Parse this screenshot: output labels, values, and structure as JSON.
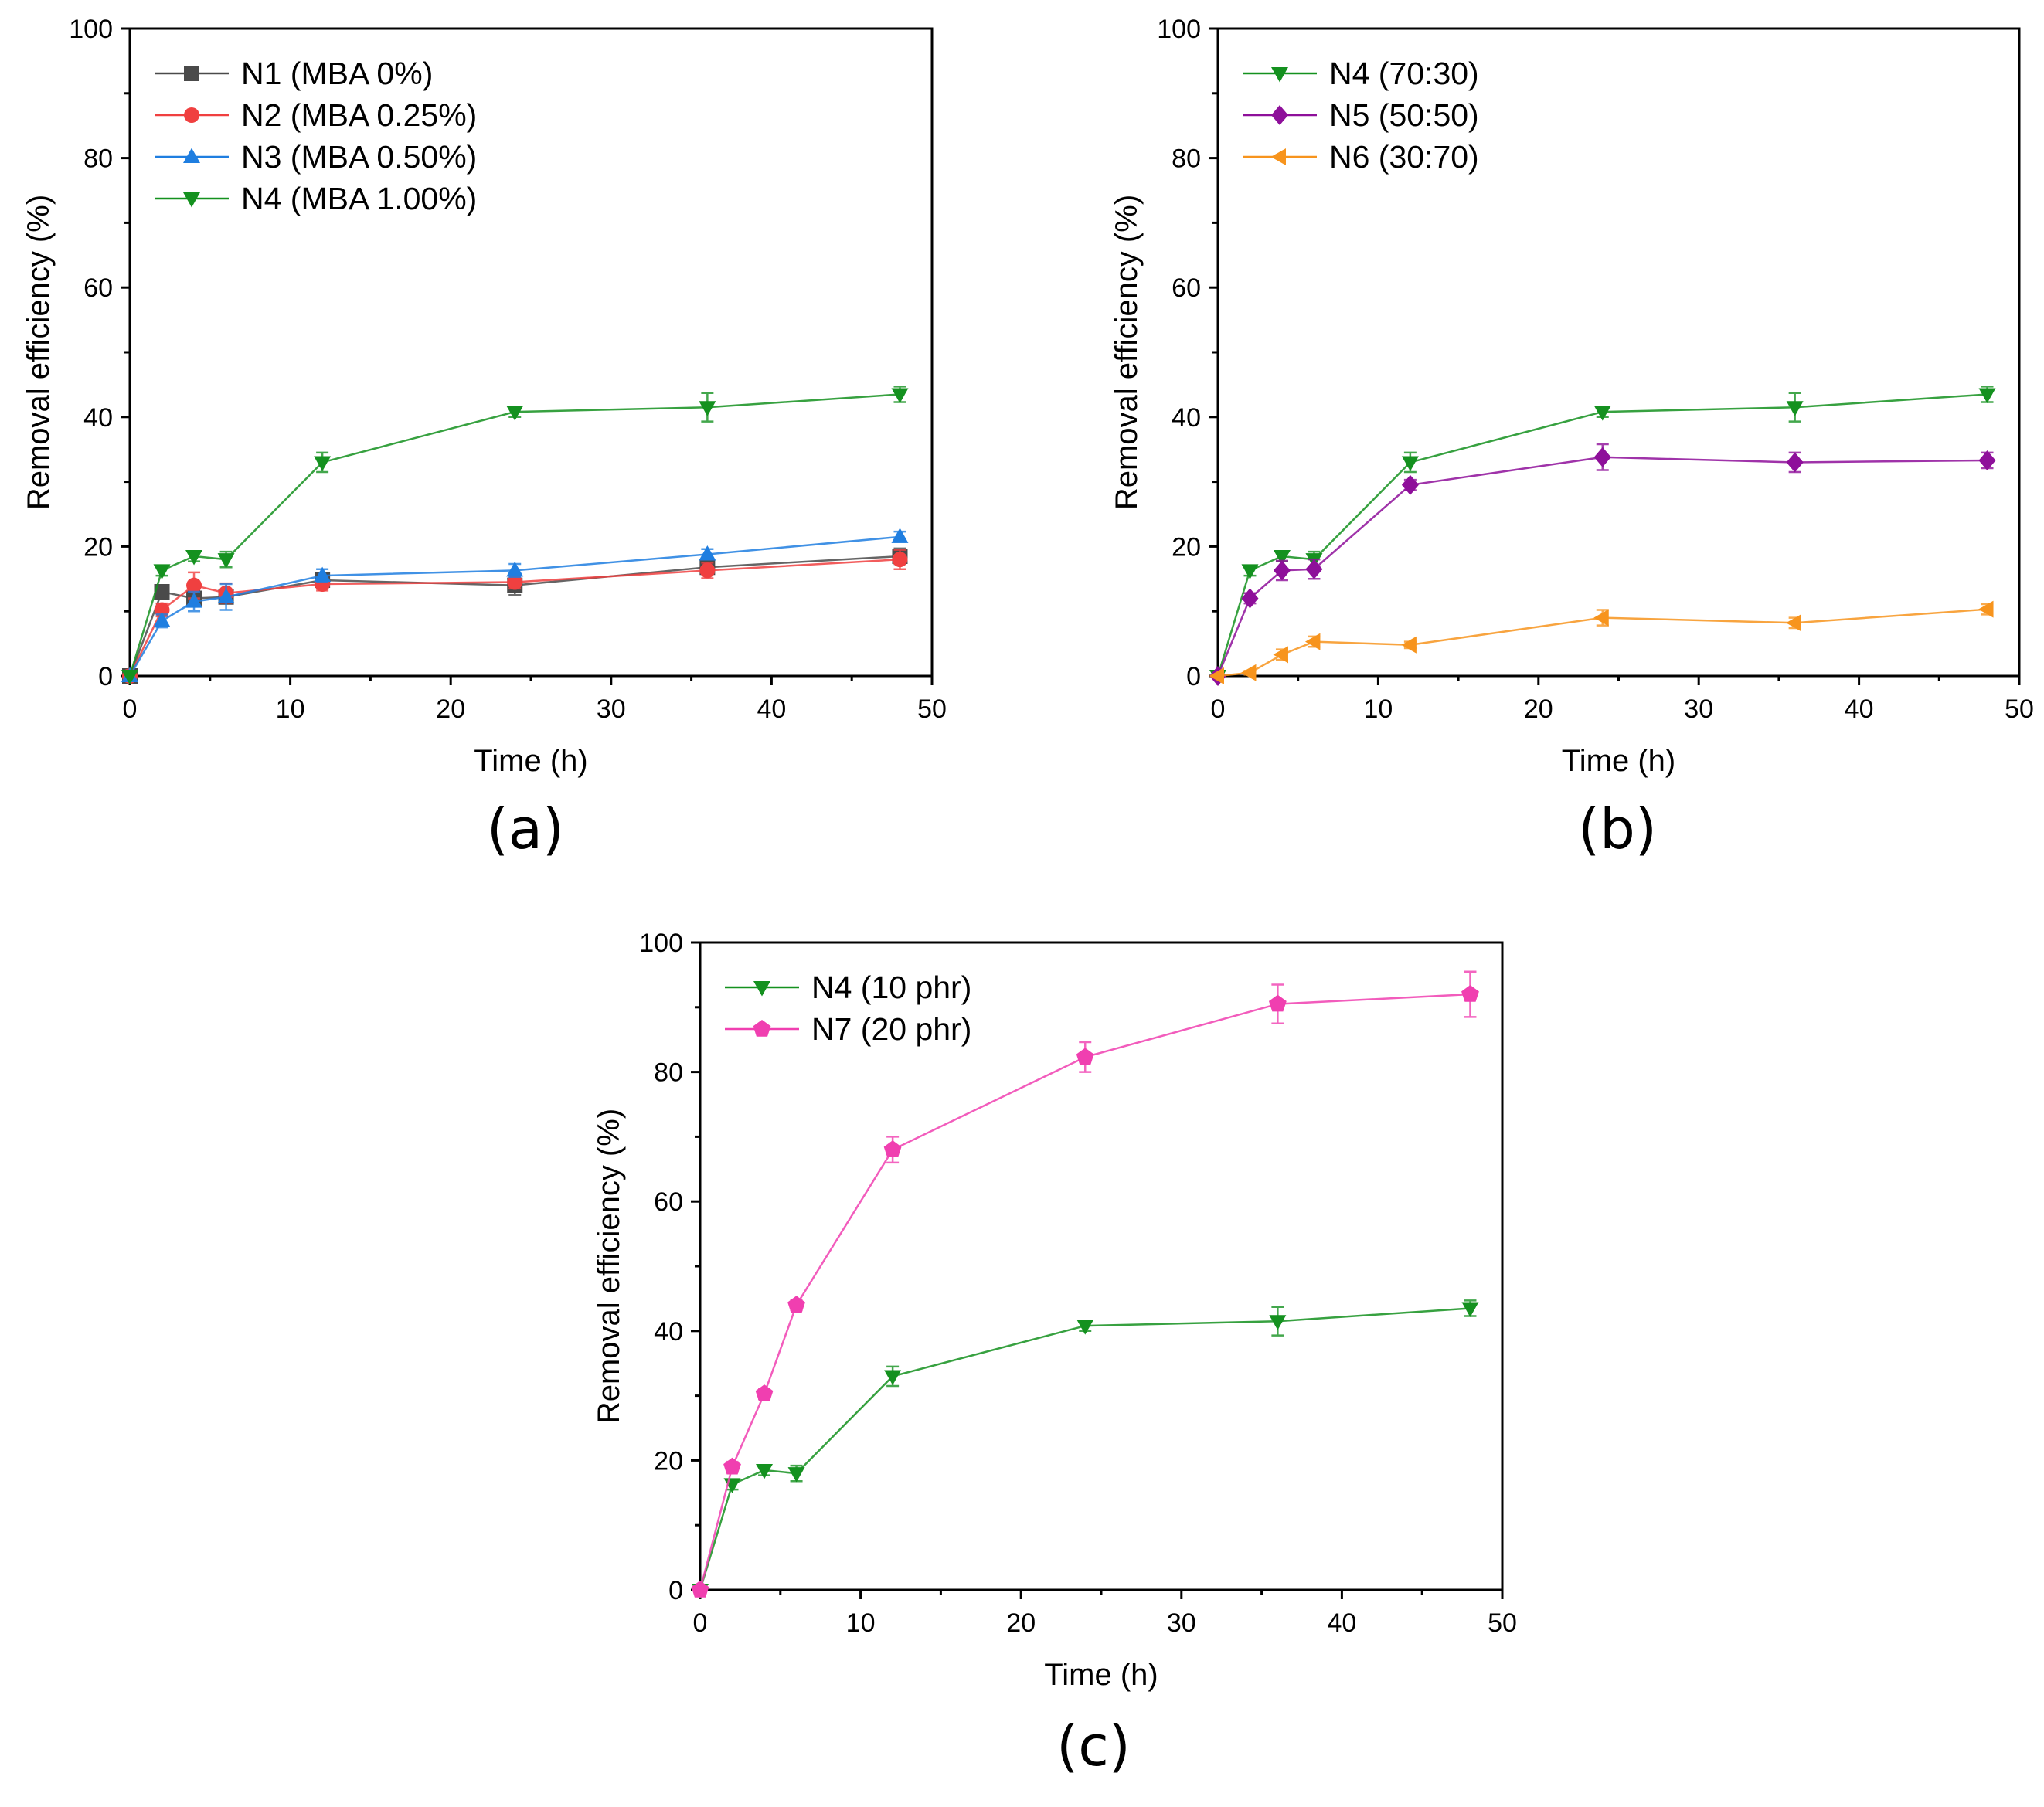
{
  "figure": {
    "chart_data": [
      {
        "type": "line",
        "panel_label": "(a)",
        "xlabel": "Time (h)",
        "ylabel": "Removal efficiency (%)",
        "xlim": [
          0,
          50
        ],
        "ylim": [
          0,
          100
        ],
        "xticks": [
          0,
          10,
          20,
          30,
          40,
          50
        ],
        "yticks": [
          0,
          20,
          40,
          60,
          80,
          100
        ],
        "x": [
          0,
          2,
          4,
          6,
          12,
          24,
          36,
          48
        ],
        "legend_position": "top-left",
        "series": [
          {
            "name": "N1 (MBA 0%)",
            "color": "#4a4a4a",
            "marker": "square",
            "values": [
              0,
              13.0,
              12.0,
              12.2,
              14.8,
              14.0,
              16.8,
              18.5
            ],
            "errors": [
              0,
              0.8,
              1.2,
              1.0,
              0.8,
              1.5,
              1.0,
              1.2
            ]
          },
          {
            "name": "N2 (MBA 0.25%)",
            "color": "#f04040",
            "marker": "circle",
            "values": [
              0,
              10.2,
              14.0,
              12.8,
              14.2,
              14.5,
              16.3,
              18.0
            ],
            "errors": [
              0,
              1.0,
              2.0,
              1.5,
              1.0,
              1.0,
              1.2,
              1.5
            ]
          },
          {
            "name": "N3 (MBA 0.50%)",
            "color": "#1f7ee0",
            "marker": "triangle-up",
            "values": [
              0,
              8.5,
              11.5,
              12.2,
              15.5,
              16.3,
              18.8,
              21.5
            ],
            "errors": [
              0,
              1.0,
              1.5,
              2.0,
              1.0,
              1.0,
              0.8,
              0.8
            ]
          },
          {
            "name": "N4 (MBA 1.00%)",
            "color": "#14911f",
            "marker": "triangle-down",
            "values": [
              0,
              16.3,
              18.5,
              18.0,
              33.0,
              40.8,
              41.5,
              43.5
            ],
            "errors": [
              0,
              0.8,
              0.8,
              1.2,
              1.5,
              0.8,
              2.2,
              1.2
            ]
          }
        ]
      },
      {
        "type": "line",
        "panel_label": "(b)",
        "xlabel": "Time (h)",
        "ylabel": "Removal efficiency (%)",
        "xlim": [
          0,
          50
        ],
        "ylim": [
          0,
          100
        ],
        "xticks": [
          0,
          10,
          20,
          30,
          40,
          50
        ],
        "yticks": [
          0,
          20,
          40,
          60,
          80,
          100
        ],
        "x": [
          0,
          2,
          4,
          6,
          12,
          24,
          36,
          48
        ],
        "legend_position": "top-left",
        "series": [
          {
            "name": "N4 (70:30)",
            "color": "#14911f",
            "marker": "triangle-down",
            "values": [
              0,
              16.3,
              18.5,
              18.0,
              33.0,
              40.8,
              41.5,
              43.5
            ],
            "errors": [
              0,
              0.8,
              0.8,
              1.2,
              1.5,
              0.8,
              2.2,
              1.2
            ]
          },
          {
            "name": "N5 (50:50)",
            "color": "#8e0f9a",
            "marker": "diamond",
            "values": [
              0,
              12.0,
              16.3,
              16.5,
              29.5,
              33.8,
              33.0,
              33.3
            ],
            "errors": [
              0,
              0.8,
              1.5,
              1.5,
              0.8,
              2.0,
              1.5,
              1.2
            ]
          },
          {
            "name": "N6 (30:70)",
            "color": "#f7941d",
            "marker": "triangle-left",
            "values": [
              0,
              0.5,
              3.3,
              5.3,
              4.8,
              9.0,
              8.2,
              10.3
            ],
            "errors": [
              0,
              0.3,
              0.8,
              0.8,
              0.5,
              1.2,
              0.8,
              0.8
            ]
          }
        ]
      },
      {
        "type": "line",
        "panel_label": "(c)",
        "xlabel": "Time (h)",
        "ylabel": "Removal efficiency (%)",
        "xlim": [
          0,
          50
        ],
        "ylim": [
          0,
          100
        ],
        "xticks": [
          0,
          10,
          20,
          30,
          40,
          50
        ],
        "yticks": [
          0,
          20,
          40,
          60,
          80,
          100
        ],
        "x": [
          0,
          2,
          4,
          6,
          12,
          24,
          36,
          48
        ],
        "legend_position": "top-left",
        "series": [
          {
            "name": "N4 (10 phr)",
            "color": "#14911f",
            "marker": "triangle-down",
            "values": [
              0,
              16.3,
              18.5,
              18.0,
              33.0,
              40.8,
              41.5,
              43.5
            ],
            "errors": [
              0,
              0.8,
              0.8,
              1.2,
              1.5,
              0.8,
              2.2,
              1.2
            ]
          },
          {
            "name": "N7 (20 phr)",
            "color": "#f03fb0",
            "marker": "pentagon",
            "values": [
              0,
              19.0,
              30.3,
              44.0,
              68.0,
              82.3,
              90.5,
              92.0
            ],
            "errors": [
              0,
              0.8,
              0.8,
              0.8,
              2.0,
              2.3,
              3.0,
              3.5
            ]
          }
        ]
      }
    ]
  }
}
